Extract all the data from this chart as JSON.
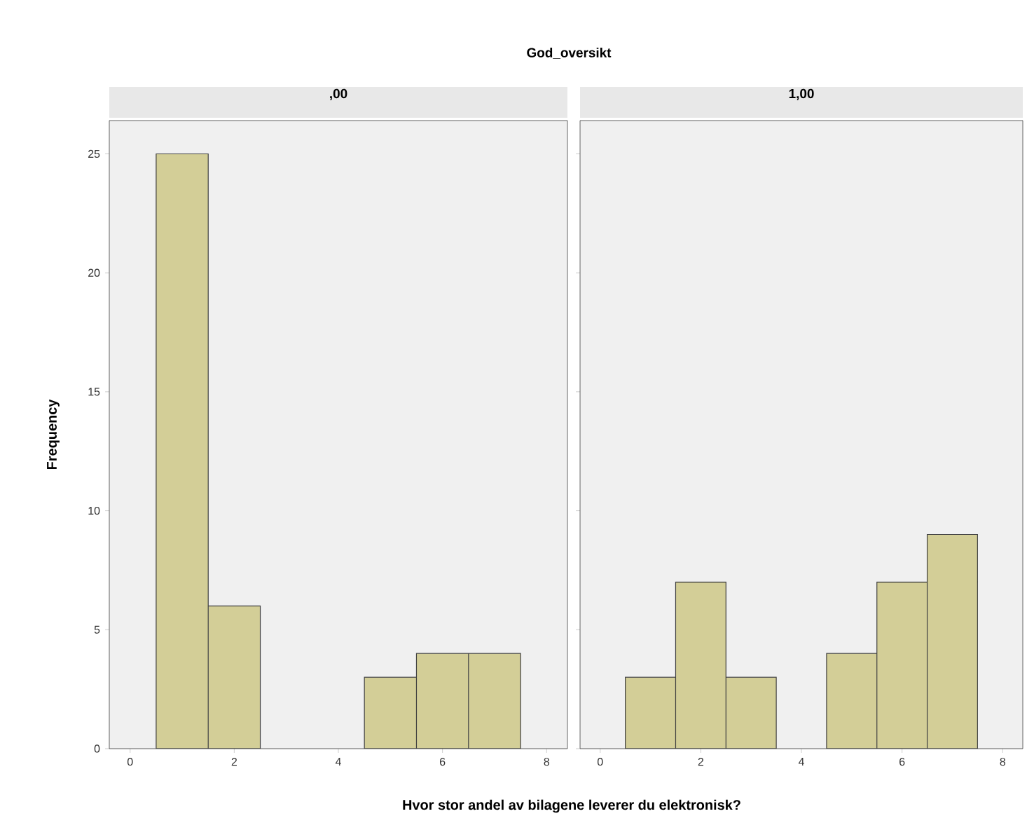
{
  "chart_data": [
    {
      "type": "histogram",
      "title": ",00",
      "annotations": [
        "God_oversikt"
      ],
      "xlabel": "Hvor stor andel av bilagene leverer du elektronisk?",
      "ylabel": "Frequency",
      "bins": [
        0.5,
        1.5,
        2.5,
        3.5,
        4.5,
        5.5,
        6.5,
        7.5
      ],
      "values": [
        25,
        6,
        0,
        0,
        3,
        4,
        4
      ],
      "color": "#d3ce97",
      "xlim": [
        -0.4,
        8.4
      ],
      "ylim": [
        0,
        26.4
      ],
      "xticks": [
        0,
        2,
        4,
        6,
        8
      ],
      "yticks": [
        0,
        5,
        10,
        15,
        20,
        25
      ]
    },
    {
      "type": "histogram",
      "title": "1,00",
      "bins": [
        0.5,
        1.5,
        2.5,
        3.5,
        4.5,
        5.5,
        6.5,
        7.5
      ],
      "values": [
        3,
        7,
        3,
        0,
        4,
        7,
        9
      ],
      "color": "#d3ce97",
      "xlim": [
        -0.4,
        8.4
      ],
      "ylim": [
        0,
        26.4
      ],
      "xticks": [
        0,
        2,
        4,
        6,
        8
      ],
      "yticks": [
        0,
        5,
        10,
        15,
        20,
        25
      ],
      "tick_labels": "x"
    }
  ]
}
